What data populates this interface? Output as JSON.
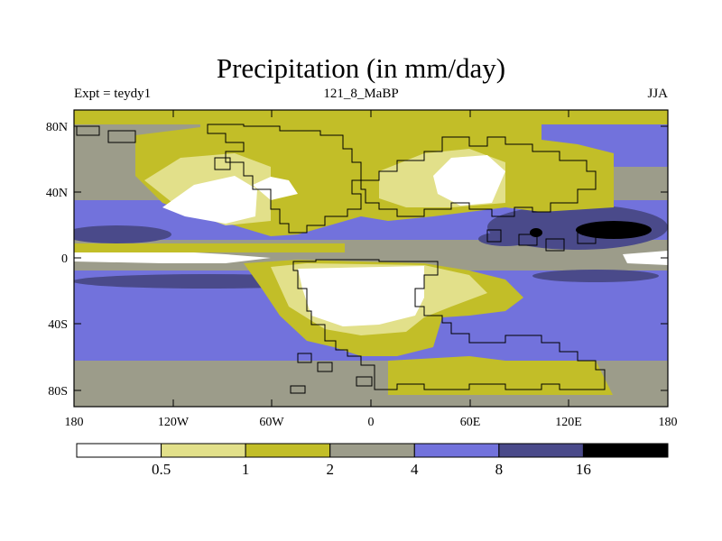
{
  "title": "Precipitation (in mm/day)",
  "subtitle_left": "Expt = teydy1",
  "subtitle_center": "121_8_MaBP",
  "subtitle_right": "JJA",
  "colors": {
    "c0": "#ffffff",
    "c1": "#e2e08a",
    "c2": "#c2be28",
    "c3": "#9c9c8a",
    "c4": "#7272dc",
    "c5": "#4a4a8a",
    "c6": "#000000"
  },
  "chart_data": {
    "type": "heatmap",
    "variable": "Precipitation",
    "units": "mm/day",
    "x_ticks": [
      "180",
      "120W",
      "60W",
      "0",
      "60E",
      "120E",
      "180"
    ],
    "y_ticks": [
      "80N",
      "40N",
      "0",
      "40S",
      "80S"
    ],
    "colorbar": {
      "levels": [
        "0.5",
        "1",
        "2",
        "4",
        "8",
        "16"
      ],
      "colors": [
        "#ffffff",
        "#e2e08a",
        "#c2be28",
        "#9c9c8a",
        "#7272dc",
        "#4a4a8a",
        "#000000"
      ]
    }
  }
}
